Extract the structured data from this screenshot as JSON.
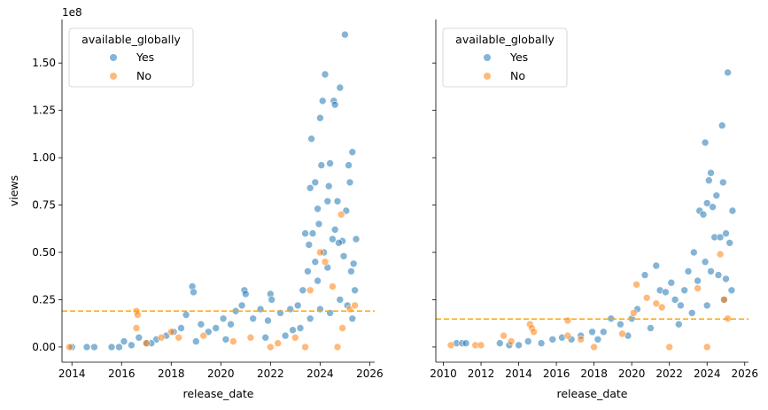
{
  "chart_data": [
    {
      "type": "scatter",
      "xlabel": "release_date",
      "ylabel": "views",
      "offset_label": "1e8",
      "xlim": [
        2013.6,
        2026.2
      ],
      "ylim": [
        -0.08,
        1.73
      ],
      "x_ticks": [
        2014,
        2016,
        2018,
        2020,
        2022,
        2024,
        2026
      ],
      "x_tick_labels": [
        "2014",
        "2016",
        "2018",
        "2020",
        "2022",
        "2024",
        "2026"
      ],
      "y_ticks": [
        0.0,
        0.25,
        0.5,
        0.75,
        1.0,
        1.25,
        1.5
      ],
      "y_tick_labels": [
        "0.00",
        "0.25",
        "0.50",
        "0.75",
        "1.00",
        "1.25",
        "1.50"
      ],
      "grid": false,
      "legend": {
        "title": "available_globally",
        "placement": "top-left",
        "entries": [
          {
            "label": "Yes",
            "color": "#1f77b4"
          },
          {
            "label": "No",
            "color": "#ff7f0e"
          }
        ]
      },
      "reference_line": {
        "y": 0.19,
        "color": "#ffa500",
        "style": "dashed"
      },
      "series": [
        {
          "name": "Yes",
          "color": "#1f77b4",
          "points": [
            [
              2014.0,
              0.0
            ],
            [
              2014.6,
              0.0
            ],
            [
              2014.9,
              0.0
            ],
            [
              2015.6,
              0.0
            ],
            [
              2015.9,
              0.0
            ],
            [
              2016.1,
              0.03
            ],
            [
              2016.4,
              0.01
            ],
            [
              2016.7,
              0.05
            ],
            [
              2017.0,
              0.02
            ],
            [
              2017.4,
              0.04
            ],
            [
              2017.8,
              0.06
            ],
            [
              2018.1,
              0.08
            ],
            [
              2018.4,
              0.1
            ],
            [
              2018.6,
              0.17
            ],
            [
              2018.85,
              0.32
            ],
            [
              2018.9,
              0.29
            ],
            [
              2019.2,
              0.12
            ],
            [
              2019.5,
              0.08
            ],
            [
              2019.8,
              0.1
            ],
            [
              2020.1,
              0.15
            ],
            [
              2020.4,
              0.12
            ],
            [
              2020.6,
              0.19
            ],
            [
              2020.85,
              0.22
            ],
            [
              2020.95,
              0.3
            ],
            [
              2021.0,
              0.28
            ],
            [
              2021.3,
              0.15
            ],
            [
              2021.6,
              0.2
            ],
            [
              2021.9,
              0.14
            ],
            [
              2022.0,
              0.28
            ],
            [
              2022.05,
              0.25
            ],
            [
              2022.4,
              0.18
            ],
            [
              2022.8,
              0.2
            ],
            [
              2023.1,
              0.22
            ],
            [
              2023.3,
              0.3
            ],
            [
              2023.5,
              0.4
            ],
            [
              2023.55,
              0.54
            ],
            [
              2023.6,
              0.84
            ],
            [
              2023.65,
              1.1
            ],
            [
              2023.7,
              0.6
            ],
            [
              2023.8,
              0.87
            ],
            [
              2023.9,
              0.73
            ],
            [
              2023.95,
              0.65
            ],
            [
              2024.0,
              1.21
            ],
            [
              2024.05,
              0.96
            ],
            [
              2024.1,
              1.3
            ],
            [
              2024.2,
              1.44
            ],
            [
              2024.3,
              0.77
            ],
            [
              2024.35,
              0.85
            ],
            [
              2024.4,
              0.97
            ],
            [
              2024.5,
              0.57
            ],
            [
              2024.55,
              1.3
            ],
            [
              2024.6,
              1.28
            ],
            [
              2024.7,
              0.77
            ],
            [
              2024.8,
              1.37
            ],
            [
              2024.9,
              0.56
            ],
            [
              2025.0,
              1.65
            ],
            [
              2025.05,
              0.72
            ],
            [
              2025.15,
              0.96
            ],
            [
              2025.2,
              0.87
            ],
            [
              2025.3,
              1.03
            ],
            [
              2025.35,
              0.44
            ],
            [
              2025.4,
              0.3
            ],
            [
              2025.45,
              0.57
            ],
            [
              2023.4,
              0.6
            ],
            [
              2023.8,
              0.45
            ],
            [
              2024.15,
              0.5
            ],
            [
              2024.6,
              0.62
            ],
            [
              2024.75,
              0.55
            ],
            [
              2024.95,
              0.48
            ],
            [
              2025.25,
              0.4
            ],
            [
              2023.2,
              0.1
            ],
            [
              2023.6,
              0.15
            ],
            [
              2024.0,
              0.2
            ],
            [
              2024.4,
              0.18
            ],
            [
              2024.8,
              0.25
            ],
            [
              2025.1,
              0.22
            ],
            [
              2025.3,
              0.15
            ],
            [
              2022.6,
              0.06
            ],
            [
              2021.8,
              0.05
            ],
            [
              2020.2,
              0.04
            ],
            [
              2019.0,
              0.03
            ],
            [
              2017.2,
              0.02
            ],
            [
              2022.9,
              0.09
            ],
            [
              2023.9,
              0.35
            ],
            [
              2024.3,
              0.42
            ]
          ]
        },
        {
          "name": "No",
          "color": "#ff7f0e",
          "points": [
            [
              2013.9,
              0.0
            ],
            [
              2016.6,
              0.19
            ],
            [
              2016.65,
              0.17
            ],
            [
              2016.6,
              0.1
            ],
            [
              2017.0,
              0.02
            ],
            [
              2017.6,
              0.05
            ],
            [
              2018.0,
              0.08
            ],
            [
              2018.3,
              0.05
            ],
            [
              2019.3,
              0.06
            ],
            [
              2020.5,
              0.03
            ],
            [
              2021.2,
              0.05
            ],
            [
              2022.3,
              0.02
            ],
            [
              2023.0,
              0.05
            ],
            [
              2023.6,
              0.3
            ],
            [
              2024.0,
              0.5
            ],
            [
              2024.2,
              0.45
            ],
            [
              2024.5,
              0.32
            ],
            [
              2024.85,
              0.7
            ],
            [
              2024.9,
              0.1
            ],
            [
              2025.2,
              0.2
            ],
            [
              2025.4,
              0.22
            ],
            [
              2022.0,
              0.0
            ],
            [
              2023.4,
              0.0
            ],
            [
              2024.7,
              0.0
            ]
          ]
        }
      ]
    },
    {
      "type": "scatter",
      "xlabel": "release_date",
      "ylabel": "",
      "xlim": [
        2009.6,
        2026.2
      ],
      "ylim": [
        -0.08,
        1.73
      ],
      "x_ticks": [
        2010,
        2012,
        2014,
        2016,
        2018,
        2020,
        2022,
        2024,
        2026
      ],
      "x_tick_labels": [
        "2010",
        "2012",
        "2014",
        "2016",
        "2018",
        "2020",
        "2022",
        "2024",
        "2026"
      ],
      "y_ticks": [
        0.0,
        0.25,
        0.5,
        0.75,
        1.0,
        1.25,
        1.5
      ],
      "grid": false,
      "legend": {
        "title": "available_globally",
        "placement": "top-left",
        "entries": [
          {
            "label": "Yes",
            "color": "#1f77b4"
          },
          {
            "label": "No",
            "color": "#ff7f0e"
          }
        ]
      },
      "reference_line": {
        "y": 0.148,
        "color": "#ffa500",
        "style": "dashed"
      },
      "series": [
        {
          "name": "Yes",
          "color": "#1f77b4",
          "points": [
            [
              2010.7,
              0.02
            ],
            [
              2011.0,
              0.02
            ],
            [
              2011.2,
              0.02
            ],
            [
              2013.0,
              0.02
            ],
            [
              2013.5,
              0.01
            ],
            [
              2014.0,
              0.01
            ],
            [
              2014.5,
              0.03
            ],
            [
              2015.2,
              0.02
            ],
            [
              2015.8,
              0.04
            ],
            [
              2016.3,
              0.05
            ],
            [
              2016.8,
              0.04
            ],
            [
              2017.3,
              0.06
            ],
            [
              2017.9,
              0.08
            ],
            [
              2018.5,
              0.08
            ],
            [
              2018.9,
              0.15
            ],
            [
              2019.4,
              0.12
            ],
            [
              2020.0,
              0.15
            ],
            [
              2020.3,
              0.2
            ],
            [
              2020.7,
              0.38
            ],
            [
              2021.3,
              0.43
            ],
            [
              2021.5,
              0.3
            ],
            [
              2021.8,
              0.29
            ],
            [
              2022.1,
              0.34
            ],
            [
              2022.3,
              0.25
            ],
            [
              2022.6,
              0.22
            ],
            [
              2022.8,
              0.3
            ],
            [
              2023.0,
              0.4
            ],
            [
              2023.3,
              0.5
            ],
            [
              2023.6,
              0.72
            ],
            [
              2023.8,
              0.7
            ],
            [
              2023.9,
              1.08
            ],
            [
              2024.0,
              0.76
            ],
            [
              2024.1,
              0.88
            ],
            [
              2024.2,
              0.92
            ],
            [
              2024.3,
              0.74
            ],
            [
              2024.4,
              0.58
            ],
            [
              2024.5,
              0.8
            ],
            [
              2024.7,
              0.58
            ],
            [
              2024.8,
              1.17
            ],
            [
              2024.85,
              0.87
            ],
            [
              2025.0,
              0.6
            ],
            [
              2025.1,
              1.45
            ],
            [
              2025.2,
              0.55
            ],
            [
              2025.35,
              0.72
            ],
            [
              2023.5,
              0.35
            ],
            [
              2023.9,
              0.45
            ],
            [
              2024.2,
              0.4
            ],
            [
              2024.6,
              0.38
            ],
            [
              2025.0,
              0.36
            ],
            [
              2025.3,
              0.3
            ],
            [
              2022.5,
              0.12
            ],
            [
              2023.2,
              0.18
            ],
            [
              2024.0,
              0.22
            ],
            [
              2024.9,
              0.25
            ],
            [
              2019.8,
              0.06
            ],
            [
              2018.2,
              0.04
            ],
            [
              2021.0,
              0.1
            ]
          ]
        },
        {
          "name": "No",
          "color": "#ff7f0e",
          "points": [
            [
              2010.4,
              0.01
            ],
            [
              2011.7,
              0.01
            ],
            [
              2012.0,
              0.01
            ],
            [
              2013.2,
              0.06
            ],
            [
              2013.6,
              0.03
            ],
            [
              2014.6,
              0.12
            ],
            [
              2014.7,
              0.1
            ],
            [
              2014.8,
              0.08
            ],
            [
              2016.6,
              0.14
            ],
            [
              2016.6,
              0.06
            ],
            [
              2017.3,
              0.04
            ],
            [
              2019.5,
              0.07
            ],
            [
              2020.1,
              0.18
            ],
            [
              2020.25,
              0.33
            ],
            [
              2020.8,
              0.26
            ],
            [
              2021.3,
              0.23
            ],
            [
              2021.6,
              0.21
            ],
            [
              2023.5,
              0.31
            ],
            [
              2024.7,
              0.49
            ],
            [
              2024.9,
              0.25
            ],
            [
              2025.1,
              0.15
            ],
            [
              2018.0,
              0.0
            ],
            [
              2022.0,
              0.0
            ],
            [
              2024.0,
              0.0
            ]
          ]
        }
      ]
    }
  ]
}
